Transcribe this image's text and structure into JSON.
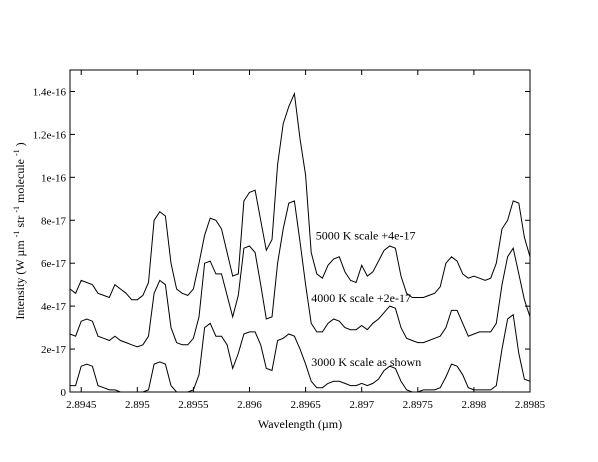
{
  "chart_data": {
    "type": "line",
    "title": "",
    "xlabel": "Wavelength  (µm)",
    "ylabel_parts": [
      "Intensity (W µm",
      "-1",
      " str",
      "-1",
      " molecule",
      "-1",
      ")"
    ],
    "xlim": [
      2.8944,
      2.8985
    ],
    "ylim": [
      0,
      1.5e-16
    ],
    "xticks": [
      2.8945,
      2.895,
      2.8955,
      2.896,
      2.8965,
      2.897,
      2.8975,
      2.898,
      2.8985
    ],
    "xtick_labels": [
      "2.8945",
      "2.895",
      "2.8955",
      "2.896",
      "2.8965",
      "2.897",
      "2.8975",
      "2.898",
      "2.8985"
    ],
    "yticks": [
      0,
      2e-17,
      4e-17,
      6e-17,
      8e-17,
      1e-16,
      1.2e-16,
      1.4e-16
    ],
    "ytick_labels": [
      "0",
      "2e-17",
      "4e-17",
      "6e-17",
      "8e-17",
      "1e-16",
      "1.2e-16",
      "1.4e-16"
    ],
    "grid": false,
    "legend": "none",
    "annotations": [
      {
        "text": "5000 K  scale +4e-17",
        "x": 2.89659,
        "y": 7.1e-17
      },
      {
        "text": "4000 K scale +2e-17",
        "x": 2.89655,
        "y": 4.2e-17
      },
      {
        "text": "3000 K scale as shown",
        "x": 2.89655,
        "y": 1.2e-17
      }
    ],
    "series": [
      {
        "x": [
          2.8944,
          2.89445,
          2.8945,
          2.89455,
          2.8946,
          2.89465,
          2.8947,
          2.89475,
          2.8948,
          2.89485,
          2.8949,
          2.89495,
          2.895,
          2.89505,
          2.8951,
          2.89515,
          2.8952,
          2.89525,
          2.8953,
          2.89535,
          2.8954,
          2.89545,
          2.8955,
          2.89555,
          2.8956,
          2.89565,
          2.8957,
          2.89575,
          2.8958,
          2.89585,
          2.8959,
          2.89595,
          2.896,
          2.89605,
          2.8961,
          2.89615,
          2.8962,
          2.89625,
          2.8963,
          2.89635,
          2.8964,
          2.89645,
          2.8965,
          2.89655,
          2.8966,
          2.89665,
          2.8967,
          2.89675,
          2.8968,
          2.89685,
          2.8969,
          2.89695,
          2.897,
          2.89705,
          2.8971,
          2.89715,
          2.8972,
          2.89725,
          2.8973,
          2.89735,
          2.8974,
          2.89745,
          2.8975,
          2.89755,
          2.8976,
          2.89765,
          2.8977,
          2.89775,
          2.8978,
          2.89785,
          2.8979,
          2.89795,
          2.898,
          2.89805,
          2.8981,
          2.89815,
          2.8982,
          2.89825,
          2.8983,
          2.89835,
          2.8984,
          2.89845,
          2.8985
        ],
        "values": [
          3e-18,
          3e-18,
          1.2e-17,
          1.3e-17,
          1.2e-17,
          3e-18,
          2e-18,
          1e-18,
          1e-18,
          0,
          0,
          0,
          0,
          0,
          1e-18,
          1.3e-17,
          1.4e-17,
          1.3e-17,
          3e-18,
          0,
          0,
          0,
          1e-18,
          8e-18,
          3e-17,
          3.2e-17,
          2.6e-17,
          2.6e-17,
          2.2e-17,
          1.1e-17,
          1.8e-17,
          2.7e-17,
          2.8e-17,
          2.8e-17,
          2.2e-17,
          1.1e-17,
          1e-17,
          2.4e-17,
          2.5e-17,
          2.7e-17,
          2.6e-17,
          2e-17,
          1.3e-17,
          5e-18,
          2e-18,
          2e-18,
          4e-18,
          5e-18,
          5e-18,
          4e-18,
          3e-18,
          3e-18,
          4e-18,
          3e-18,
          4e-18,
          6e-18,
          1e-17,
          1.2e-17,
          1.1e-17,
          5e-18,
          1e-18,
          0,
          0,
          1e-18,
          1e-18,
          1e-18,
          2e-18,
          7e-18,
          1.3e-17,
          1.2e-17,
          8e-18,
          2e-18,
          1e-18,
          1e-18,
          1e-18,
          1e-18,
          3e-18,
          2e-17,
          3.4e-17,
          3.6e-17,
          1.8e-17,
          6e-18,
          5e-18
        ]
      },
      {
        "x": [
          2.8944,
          2.89445,
          2.8945,
          2.89455,
          2.8946,
          2.89465,
          2.8947,
          2.89475,
          2.8948,
          2.89485,
          2.8949,
          2.89495,
          2.895,
          2.89505,
          2.8951,
          2.89515,
          2.8952,
          2.89525,
          2.8953,
          2.89535,
          2.8954,
          2.89545,
          2.8955,
          2.89555,
          2.8956,
          2.89565,
          2.8957,
          2.89575,
          2.8958,
          2.89585,
          2.8959,
          2.89595,
          2.896,
          2.89605,
          2.8961,
          2.89615,
          2.8962,
          2.89625,
          2.8963,
          2.89635,
          2.8964,
          2.89645,
          2.8965,
          2.89655,
          2.8966,
          2.89665,
          2.8967,
          2.89675,
          2.8968,
          2.89685,
          2.8969,
          2.89695,
          2.897,
          2.89705,
          2.8971,
          2.89715,
          2.8972,
          2.89725,
          2.8973,
          2.89735,
          2.8974,
          2.89745,
          2.8975,
          2.89755,
          2.8976,
          2.89765,
          2.8977,
          2.89775,
          2.8978,
          2.89785,
          2.8979,
          2.89795,
          2.898,
          2.89805,
          2.8981,
          2.89815,
          2.8982,
          2.89825,
          2.8983,
          2.89835,
          2.8984,
          2.89845,
          2.8985
        ],
        "values": [
          2.7e-17,
          2.6e-17,
          3.3e-17,
          3.4e-17,
          3.3e-17,
          2.6e-17,
          2.5e-17,
          2.4e-17,
          2.6e-17,
          2.4e-17,
          2.3e-17,
          2.2e-17,
          2.1e-17,
          2.2e-17,
          2.6e-17,
          4.6e-17,
          5.2e-17,
          5e-17,
          3e-17,
          2.3e-17,
          2.2e-17,
          2.2e-17,
          2.5e-17,
          3.5e-17,
          6e-17,
          6.1e-17,
          5.5e-17,
          5.5e-17,
          4.5e-17,
          3.5e-17,
          4.5e-17,
          6.7e-17,
          6.8e-17,
          6.5e-17,
          5e-17,
          3.4e-17,
          3.5e-17,
          6e-17,
          7.6e-17,
          8.8e-17,
          8.9e-17,
          7e-17,
          5e-17,
          3.2e-17,
          2.8e-17,
          2.8e-17,
          3.2e-17,
          3.4e-17,
          3.3e-17,
          3e-17,
          2.9e-17,
          2.9e-17,
          3.1e-17,
          2.9e-17,
          3.2e-17,
          3.4e-17,
          3.7e-17,
          4e-17,
          3.9e-17,
          3e-17,
          2.5e-17,
          2.4e-17,
          2.3e-17,
          2.3e-17,
          2.4e-17,
          2.5e-17,
          2.6e-17,
          3e-17,
          3.8e-17,
          3.8e-17,
          3.2e-17,
          2.6e-17,
          2.7e-17,
          2.8e-17,
          2.8e-17,
          2.8e-17,
          3.2e-17,
          5e-17,
          6.3e-17,
          6.7e-17,
          5.5e-17,
          4.3e-17,
          3.5e-17
        ]
      },
      {
        "x": [
          2.8944,
          2.89445,
          2.8945,
          2.89455,
          2.8946,
          2.89465,
          2.8947,
          2.89475,
          2.8948,
          2.89485,
          2.8949,
          2.89495,
          2.895,
          2.89505,
          2.8951,
          2.89515,
          2.8952,
          2.89525,
          2.8953,
          2.89535,
          2.8954,
          2.89545,
          2.8955,
          2.89555,
          2.8956,
          2.89565,
          2.8957,
          2.89575,
          2.8958,
          2.89585,
          2.8959,
          2.89595,
          2.896,
          2.89605,
          2.8961,
          2.89615,
          2.8962,
          2.89625,
          2.8963,
          2.89635,
          2.8964,
          2.89645,
          2.8965,
          2.89655,
          2.8966,
          2.89665,
          2.8967,
          2.89675,
          2.8968,
          2.89685,
          2.8969,
          2.89695,
          2.897,
          2.89705,
          2.8971,
          2.89715,
          2.8972,
          2.89725,
          2.8973,
          2.89735,
          2.8974,
          2.89745,
          2.8975,
          2.89755,
          2.8976,
          2.89765,
          2.8977,
          2.89775,
          2.8978,
          2.89785,
          2.8979,
          2.89795,
          2.898,
          2.89805,
          2.8981,
          2.89815,
          2.8982,
          2.89825,
          2.8983,
          2.89835,
          2.8984,
          2.89845,
          2.8985
        ],
        "values": [
          4.8e-17,
          4.6e-17,
          5.2e-17,
          5.1e-17,
          5e-17,
          4.6e-17,
          4.5e-17,
          4.4e-17,
          5e-17,
          4.8e-17,
          4.6e-17,
          4.3e-17,
          4.3e-17,
          4.5e-17,
          5.1e-17,
          8e-17,
          8.4e-17,
          8.2e-17,
          6e-17,
          4.8e-17,
          4.6e-17,
          4.5e-17,
          4.8e-17,
          6e-17,
          7.3e-17,
          8.1e-17,
          8e-17,
          7.6e-17,
          6.5e-17,
          5.4e-17,
          5.5e-17,
          8.9e-17,
          9.3e-17,
          9.4e-17,
          8e-17,
          6.6e-17,
          7.1e-17,
          1.06e-16,
          1.25e-16,
          1.33e-16,
          1.39e-16,
          1.18e-16,
          1.01e-16,
          6.5e-17,
          5.5e-17,
          5.3e-17,
          5.9e-17,
          6.2e-17,
          6.3e-17,
          5.6e-17,
          5.2e-17,
          5.1e-17,
          5.9e-17,
          5.4e-17,
          5.6e-17,
          6.1e-17,
          6.6e-17,
          6.8e-17,
          6.7e-17,
          5.4e-17,
          4.6e-17,
          4.4e-17,
          4.4e-17,
          4.4e-17,
          4.5e-17,
          4.6e-17,
          4.9e-17,
          6e-17,
          6.3e-17,
          6.1e-17,
          5.5e-17,
          5.3e-17,
          5.4e-17,
          5.3e-17,
          5.2e-17,
          5.3e-17,
          6e-17,
          7.6e-17,
          8e-17,
          8.9e-17,
          8.8e-17,
          7.2e-17,
          6.3e-17
        ]
      }
    ]
  }
}
